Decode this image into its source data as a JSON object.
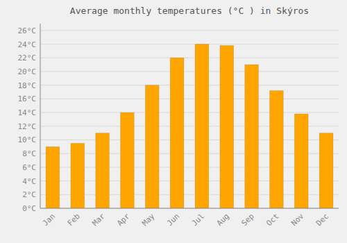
{
  "chart_data": {
    "type": "bar",
    "title": "Average monthly temperatures (°C ) in Skýros",
    "categories": [
      "Jan",
      "Feb",
      "Mar",
      "Apr",
      "May",
      "Jun",
      "Jul",
      "Aug",
      "Sep",
      "Oct",
      "Nov",
      "Dec"
    ],
    "values": [
      9,
      9.5,
      11,
      14,
      18,
      22,
      24,
      23.8,
      21,
      17.2,
      13.8,
      11
    ],
    "color": "#FFA500",
    "ylim": [
      0,
      27
    ],
    "yticks": [
      {
        "value": 0,
        "label": "0°C"
      },
      {
        "value": 2,
        "label": "2°C"
      },
      {
        "value": 4,
        "label": "4°C"
      },
      {
        "value": 6,
        "label": "6°C"
      },
      {
        "value": 8,
        "label": "8°C"
      },
      {
        "value": 10,
        "label": "10°C"
      },
      {
        "value": 12,
        "label": "12°C"
      },
      {
        "value": 14,
        "label": "14°C"
      },
      {
        "value": 16,
        "label": "16°C"
      },
      {
        "value": 18,
        "label": "18°C"
      },
      {
        "value": 20,
        "label": "20°C"
      },
      {
        "value": 22,
        "label": "22°C"
      },
      {
        "value": 24,
        "label": "24°C"
      },
      {
        "value": 26,
        "label": "26°C"
      }
    ],
    "grid": true
  }
}
